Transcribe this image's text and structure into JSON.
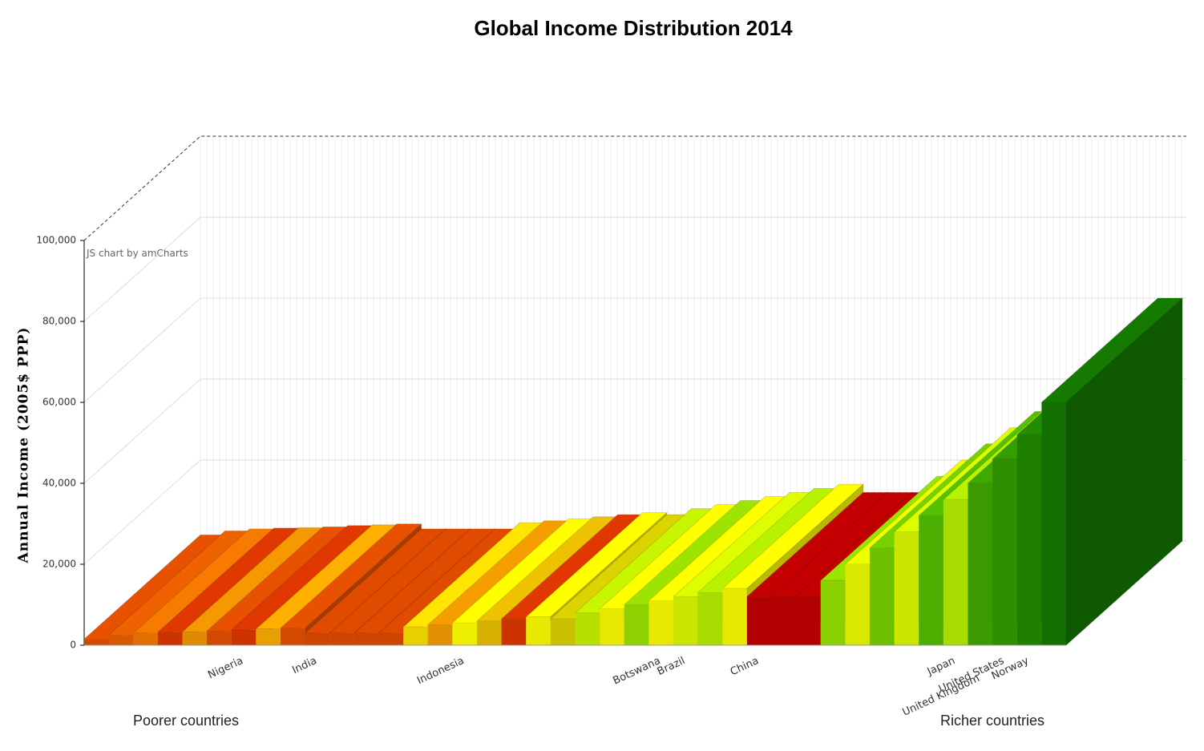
{
  "chart_data": {
    "type": "bar3d",
    "title": "Global Income Distribution 2014",
    "y_label": "Annual Income (2005$ PPP)",
    "credit": "JS chart by amCharts",
    "left_note": "Poorer countries",
    "right_note": "Richer countries",
    "categories": [
      null,
      null,
      null,
      null,
      null,
      null,
      "Nigeria",
      null,
      null,
      "India",
      null,
      null,
      null,
      null,
      null,
      "Indonesia",
      null,
      null,
      null,
      null,
      null,
      null,
      null,
      "Botswana",
      "Brazil",
      null,
      null,
      "China",
      null,
      null,
      null,
      null,
      null,
      null,
      null,
      "Japan",
      "United Kingdom",
      "United States",
      "Norway",
      null
    ],
    "values": [
      1500,
      2500,
      3000,
      3200,
      3300,
      3500,
      3800,
      4000,
      4200,
      3000,
      3000,
      3000,
      3000,
      4500,
      5000,
      5500,
      6000,
      6500,
      7000,
      6500,
      8000,
      9000,
      10000,
      11000,
      12000,
      13000,
      14000,
      12000,
      12000,
      12000,
      16000,
      20000,
      24000,
      28000,
      32000,
      36000,
      40000,
      46000,
      52000,
      60000
    ],
    "colors": [
      "#d24a00",
      "#d85a00",
      "#e07000",
      "#cc3300",
      "#e08a00",
      "#d24a00",
      "#cc3300",
      "#e8a000",
      "#d24a00",
      "#cc4400",
      "#cc4400",
      "#cc4400",
      "#cc4400",
      "#e8d000",
      "#e09000",
      "#eeee00",
      "#d8b000",
      "#cc3300",
      "#e8e800",
      "#c8c000",
      "#b5e000",
      "#e8e800",
      "#8fd000",
      "#e8e800",
      "#c9e600",
      "#a8dc00",
      "#e8e800",
      "#b30000",
      "#b30000",
      "#b30000",
      "#8bd000",
      "#d8e800",
      "#6cc000",
      "#c9e600",
      "#4caf00",
      "#a8dc00",
      "#3a9a00",
      "#2e9000",
      "#1f8000",
      "#137000"
    ],
    "ylim": [
      0,
      100000
    ],
    "yticks": [
      0,
      {
        "value": 20000,
        "label": "20,000"
      },
      {
        "value": 40000,
        "label": "40,000"
      },
      {
        "value": 60000,
        "label": "60,000"
      },
      {
        "value": 80000,
        "label": "80,000"
      },
      {
        "value": 100000,
        "label": "100,000"
      }
    ],
    "grid": true
  }
}
